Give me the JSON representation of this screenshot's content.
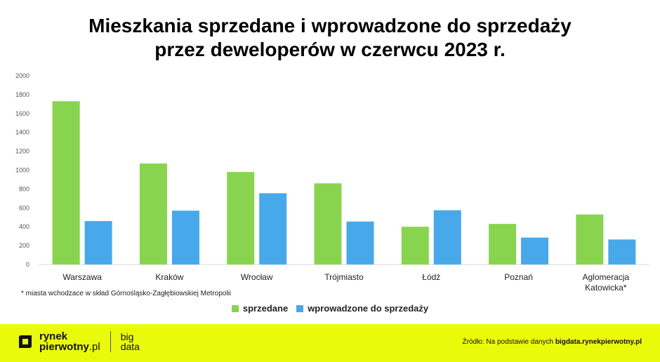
{
  "title_line1": "Mieszkania sprzedane i wprowadzone do sprzedaży",
  "title_line2": "przez deweloperów w czerwcu 2023 r.",
  "footnote": "* miasta wchodzace w skład Górnośląsko-Zagłębiowskiej Metropolii",
  "colors": {
    "sold": "#88d44f",
    "introduced": "#47a9ea",
    "footer_bg": "#eafa0b"
  },
  "footer": {
    "brand_line1": "rynek",
    "brand_line2_bold": "pierwotny",
    "brand_line2_light": ".pl",
    "brand_sub_line1": "big",
    "brand_sub_line2": "data",
    "source_prefix": "Źródło: Na podstawie danych",
    "source_link": "bigdata.rynekpierwotny.pl"
  },
  "chart_data": {
    "type": "bar",
    "categories": [
      "Warszawa",
      "Kraków",
      "Wrocław",
      "Trójmiasto",
      "Łódź",
      "Poznań",
      "Aglomeracja Katowicka*"
    ],
    "series": [
      {
        "name": "sprzedane",
        "values": [
          1730,
          1070,
          980,
          860,
          400,
          430,
          530
        ]
      },
      {
        "name": "wprowadzone do sprzedaży",
        "values": [
          460,
          570,
          755,
          455,
          575,
          285,
          265
        ]
      }
    ],
    "ylim": [
      0,
      2000
    ],
    "yticks": [
      "0",
      "200",
      "400",
      "600",
      "800",
      "1000",
      "1200",
      "1400",
      "1600",
      "1800",
      "2000"
    ],
    "grid": false,
    "legend": "bottom-center"
  }
}
